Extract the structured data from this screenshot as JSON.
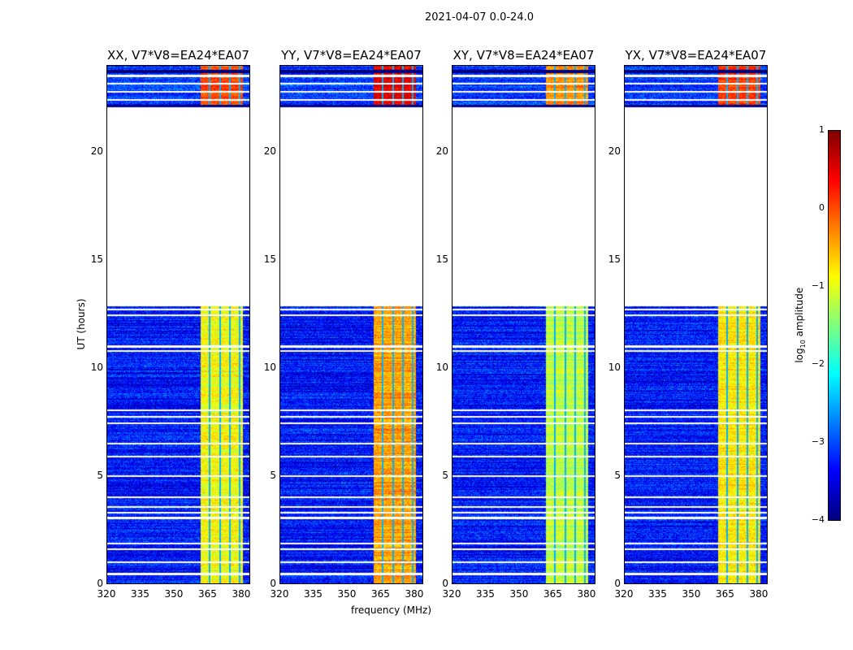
{
  "suptitle": "2021-04-07 0.0-24.0",
  "chart_data": {
    "type": "heatmap",
    "title": "2021-04-07 0.0-24.0",
    "xlabel": "frequency (MHz)",
    "ylabel": "UT (hours)",
    "xlim": [
      320,
      384
    ],
    "ylim": [
      0,
      24
    ],
    "xticks": [
      "320",
      "335",
      "350",
      "365",
      "380"
    ],
    "yticks": [
      "0",
      "5",
      "10",
      "15",
      "20"
    ],
    "panels": [
      {
        "title": "XX, V7*V8=EA24*EA07",
        "band_level": -0.9
      },
      {
        "title": "YY, V7*V8=EA24*EA07",
        "band_level": -0.4
      },
      {
        "title": "XY, V7*V8=EA24*EA07",
        "band_level": -1.2
      },
      {
        "title": "YX, V7*V8=EA24*EA07",
        "band_level": -0.8
      }
    ],
    "background_level": -3.3,
    "bright_band_mhz": [
      362,
      381
    ],
    "band_gaps_mhz": [
      366,
      370.5,
      375,
      379.5
    ],
    "data_time_ranges_hours": [
      [
        0,
        12.85
      ],
      [
        22.1,
        24
      ]
    ],
    "flagged_times_hours": [
      0.45,
      1.0,
      1.6,
      1.85,
      3.05,
      3.3,
      3.55,
      4.0,
      5.0,
      5.9,
      6.5,
      7.45,
      7.75,
      8.05,
      10.8,
      11.0,
      12.45,
      12.7,
      22.45,
      22.8,
      23.2,
      23.55
    ],
    "colorbar": {
      "label": "log10 amplitude",
      "range": [
        -4,
        1
      ],
      "ticks": [
        "1",
        "0",
        "−1",
        "−2",
        "−3",
        "−4"
      ],
      "colormap": "jet"
    }
  }
}
